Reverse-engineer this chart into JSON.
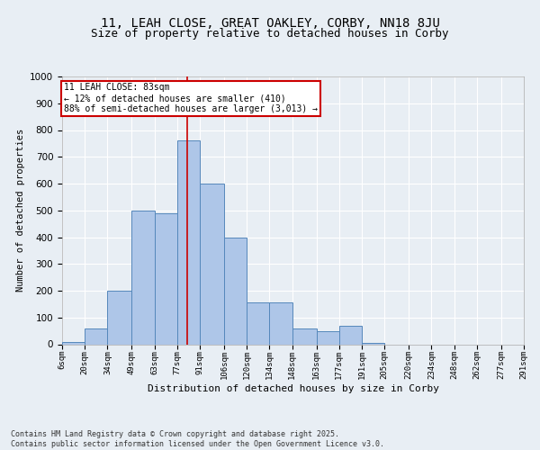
{
  "title1": "11, LEAH CLOSE, GREAT OAKLEY, CORBY, NN18 8JU",
  "title2": "Size of property relative to detached houses in Corby",
  "xlabel": "Distribution of detached houses by size in Corby",
  "ylabel": "Number of detached properties",
  "bin_labels": [
    "6sqm",
    "20sqm",
    "34sqm",
    "49sqm",
    "63sqm",
    "77sqm",
    "91sqm",
    "106sqm",
    "120sqm",
    "134sqm",
    "148sqm",
    "163sqm",
    "177sqm",
    "191sqm",
    "205sqm",
    "220sqm",
    "234sqm",
    "248sqm",
    "262sqm",
    "277sqm",
    "291sqm"
  ],
  "bin_edges": [
    6,
    20,
    34,
    49,
    63,
    77,
    91,
    106,
    120,
    134,
    148,
    163,
    177,
    191,
    205,
    220,
    234,
    248,
    262,
    277,
    291
  ],
  "bar_heights": [
    10,
    60,
    200,
    500,
    490,
    760,
    600,
    400,
    155,
    155,
    60,
    50,
    70,
    5,
    0,
    0,
    0,
    0,
    0,
    0
  ],
  "bar_color": "#aec6e8",
  "bar_edge_color": "#5588bb",
  "property_line_x": 83,
  "property_line_color": "#cc0000",
  "annotation_text": "11 LEAH CLOSE: 83sqm\n← 12% of detached houses are smaller (410)\n88% of semi-detached houses are larger (3,013) →",
  "annotation_box_color": "#ffffff",
  "annotation_box_edge": "#cc0000",
  "ylim": [
    0,
    1000
  ],
  "yticks": [
    0,
    100,
    200,
    300,
    400,
    500,
    600,
    700,
    800,
    900,
    1000
  ],
  "background_color": "#e8eef4",
  "plot_bg_color": "#e8eef4",
  "footer_text": "Contains HM Land Registry data © Crown copyright and database right 2025.\nContains public sector information licensed under the Open Government Licence v3.0.",
  "grid_color": "#ffffff",
  "title_fontsize": 10,
  "subtitle_fontsize": 9
}
